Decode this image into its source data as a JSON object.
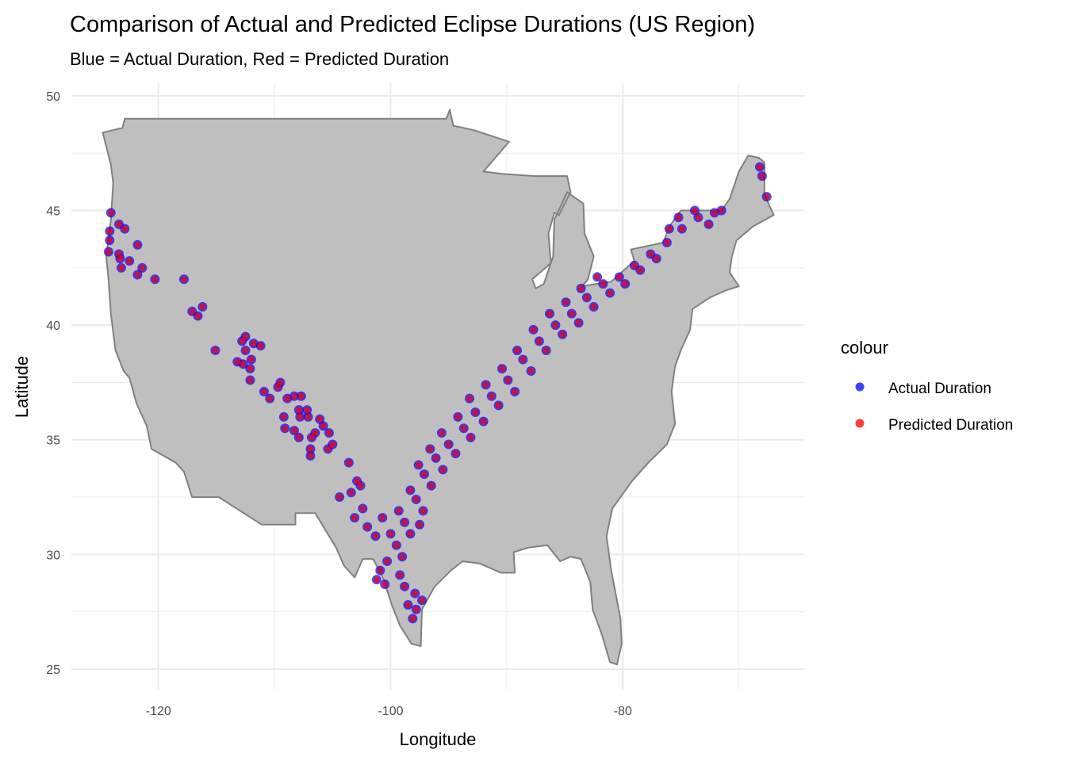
{
  "chart_data": {
    "type": "scatter",
    "title": "Comparison of Actual and Predicted Eclipse Durations (US Region)",
    "subtitle": "Blue = Actual Duration, Red = Predicted Duration",
    "xlabel": "Longitude",
    "ylabel": "Latitude",
    "xlim": [
      -127.5,
      -64.3
    ],
    "ylim": [
      24.1,
      50.55
    ],
    "x_ticks": [
      {
        "value": -120,
        "label": "-120"
      },
      {
        "value": -100,
        "label": "-100"
      },
      {
        "value": -80,
        "label": "-80"
      }
    ],
    "y_ticks": [
      {
        "value": 25,
        "label": "25"
      },
      {
        "value": 30,
        "label": "30"
      },
      {
        "value": 35,
        "label": "35"
      },
      {
        "value": 40,
        "label": "40"
      },
      {
        "value": 45,
        "label": "45"
      },
      {
        "value": 50,
        "label": "50"
      }
    ],
    "grid": true,
    "legend": {
      "title": "colour",
      "placement": "right",
      "entries": [
        {
          "label": "Actual Duration",
          "color": "#0000ff"
        },
        {
          "label": "Predicted Duration",
          "color": "#ff0000"
        }
      ]
    },
    "map_fill": "#bfbfbf",
    "map_stroke": "#808080",
    "us_outline": [
      [
        -124.8,
        48.4
      ],
      [
        -123.1,
        48.6
      ],
      [
        -122.9,
        49.0
      ],
      [
        -95.2,
        49.0
      ],
      [
        -94.9,
        49.4
      ],
      [
        -94.6,
        48.7
      ],
      [
        -92.8,
        48.5
      ],
      [
        -89.8,
        48.0
      ],
      [
        -92.0,
        46.7
      ],
      [
        -90.4,
        46.6
      ],
      [
        -87.6,
        46.5
      ],
      [
        -84.8,
        46.5
      ],
      [
        -84.5,
        45.8
      ],
      [
        -85.5,
        44.8
      ],
      [
        -85.9,
        44.9
      ],
      [
        -86.4,
        44.0
      ],
      [
        -86.2,
        42.7
      ],
      [
        -87.8,
        42.0
      ],
      [
        -87.5,
        41.6
      ],
      [
        -86.8,
        41.8
      ],
      [
        -86.0,
        43.0
      ],
      [
        -85.9,
        44.6
      ],
      [
        -84.8,
        45.8
      ],
      [
        -83.4,
        45.3
      ],
      [
        -83.3,
        44.0
      ],
      [
        -82.5,
        43.0
      ],
      [
        -83.0,
        42.0
      ],
      [
        -83.5,
        41.7
      ],
      [
        -81.0,
        41.9
      ],
      [
        -79.0,
        42.8
      ],
      [
        -79.3,
        43.3
      ],
      [
        -76.5,
        43.6
      ],
      [
        -76.0,
        44.3
      ],
      [
        -75.0,
        45.0
      ],
      [
        -71.5,
        45.0
      ],
      [
        -70.8,
        45.5
      ],
      [
        -70.0,
        46.7
      ],
      [
        -69.2,
        47.4
      ],
      [
        -68.3,
        47.3
      ],
      [
        -67.8,
        47.1
      ],
      [
        -67.8,
        45.7
      ],
      [
        -67.0,
        44.8
      ],
      [
        -68.8,
        44.3
      ],
      [
        -70.2,
        43.7
      ],
      [
        -70.6,
        43.0
      ],
      [
        -70.8,
        42.3
      ],
      [
        -70.0,
        41.7
      ],
      [
        -71.2,
        41.5
      ],
      [
        -72.5,
        41.2
      ],
      [
        -74.0,
        40.7
      ],
      [
        -74.2,
        39.8
      ],
      [
        -75.0,
        38.9
      ],
      [
        -75.5,
        38.2
      ],
      [
        -75.8,
        37.1
      ],
      [
        -75.5,
        35.7
      ],
      [
        -76.2,
        34.8
      ],
      [
        -77.8,
        34.0
      ],
      [
        -79.2,
        33.2
      ],
      [
        -80.9,
        32.0
      ],
      [
        -81.4,
        30.8
      ],
      [
        -81.0,
        29.3
      ],
      [
        -80.2,
        27.2
      ],
      [
        -80.1,
        26.1
      ],
      [
        -80.5,
        25.2
      ],
      [
        -81.1,
        25.3
      ],
      [
        -81.8,
        26.5
      ],
      [
        -82.6,
        27.6
      ],
      [
        -82.8,
        28.8
      ],
      [
        -83.6,
        29.8
      ],
      [
        -84.5,
        29.9
      ],
      [
        -85.4,
        29.7
      ],
      [
        -86.5,
        30.4
      ],
      [
        -88.1,
        30.3
      ],
      [
        -89.4,
        30.1
      ],
      [
        -89.3,
        29.2
      ],
      [
        -90.5,
        29.2
      ],
      [
        -92.3,
        29.6
      ],
      [
        -93.8,
        29.7
      ],
      [
        -94.8,
        29.3
      ],
      [
        -96.2,
        28.6
      ],
      [
        -97.3,
        27.6
      ],
      [
        -97.4,
        26.0
      ],
      [
        -98.2,
        26.1
      ],
      [
        -99.2,
        26.9
      ],
      [
        -99.9,
        27.8
      ],
      [
        -100.6,
        28.9
      ],
      [
        -101.5,
        29.8
      ],
      [
        -102.4,
        29.8
      ],
      [
        -103.1,
        29.0
      ],
      [
        -104.0,
        29.5
      ],
      [
        -104.7,
        30.3
      ],
      [
        -106.5,
        31.8
      ],
      [
        -108.2,
        31.8
      ],
      [
        -108.2,
        31.3
      ],
      [
        -111.1,
        31.3
      ],
      [
        -114.8,
        32.5
      ],
      [
        -117.1,
        32.5
      ],
      [
        -117.8,
        33.6
      ],
      [
        -118.5,
        34.0
      ],
      [
        -120.6,
        34.6
      ],
      [
        -121.0,
        35.6
      ],
      [
        -121.9,
        36.6
      ],
      [
        -122.5,
        37.7
      ],
      [
        -123.0,
        38.0
      ],
      [
        -123.7,
        38.9
      ],
      [
        -124.1,
        40.5
      ],
      [
        -124.3,
        42.0
      ],
      [
        -124.5,
        43.0
      ],
      [
        -124.1,
        44.6
      ],
      [
        -123.9,
        46.2
      ],
      [
        -124.1,
        47.0
      ],
      [
        -124.7,
        48.2
      ]
    ],
    "points": [
      [
        -124.1,
        44.9
      ],
      [
        -123.4,
        44.4
      ],
      [
        -122.9,
        44.2
      ],
      [
        -124.2,
        44.1
      ],
      [
        -124.2,
        43.7
      ],
      [
        -124.3,
        43.2
      ],
      [
        -123.4,
        43.1
      ],
      [
        -123.3,
        42.9
      ],
      [
        -121.8,
        43.5
      ],
      [
        -122.5,
        42.8
      ],
      [
        -123.2,
        42.5
      ],
      [
        -121.4,
        42.5
      ],
      [
        -121.8,
        42.2
      ],
      [
        -120.3,
        42.0
      ],
      [
        -117.8,
        42.0
      ],
      [
        -117.1,
        40.6
      ],
      [
        -116.2,
        40.8
      ],
      [
        -116.6,
        40.4
      ],
      [
        -115.1,
        38.9
      ],
      [
        -112.5,
        39.5
      ],
      [
        -112.8,
        39.3
      ],
      [
        -111.8,
        39.2
      ],
      [
        -111.2,
        39.1
      ],
      [
        -112.5,
        38.9
      ],
      [
        -112.0,
        38.5
      ],
      [
        -113.2,
        38.4
      ],
      [
        -112.7,
        38.3
      ],
      [
        -112.1,
        38.1
      ],
      [
        -112.1,
        37.6
      ],
      [
        -110.9,
        37.1
      ],
      [
        -109.5,
        37.5
      ],
      [
        -109.7,
        37.3
      ],
      [
        -110.4,
        36.8
      ],
      [
        -108.9,
        36.8
      ],
      [
        -108.3,
        36.9
      ],
      [
        -107.7,
        36.9
      ],
      [
        -107.9,
        36.3
      ],
      [
        -107.2,
        36.3
      ],
      [
        -107.8,
        36.0
      ],
      [
        -107.1,
        36.0
      ],
      [
        -109.2,
        36.0
      ],
      [
        -109.1,
        35.5
      ],
      [
        -108.3,
        35.4
      ],
      [
        -107.9,
        35.1
      ],
      [
        -106.1,
        35.9
      ],
      [
        -105.8,
        35.6
      ],
      [
        -106.5,
        35.3
      ],
      [
        -106.8,
        35.1
      ],
      [
        -105.3,
        35.3
      ],
      [
        -105.0,
        34.8
      ],
      [
        -105.4,
        34.6
      ],
      [
        -106.9,
        34.6
      ],
      [
        -106.9,
        34.3
      ],
      [
        -103.6,
        34.0
      ],
      [
        -102.9,
        33.2
      ],
      [
        -102.6,
        33.0
      ],
      [
        -103.4,
        32.7
      ],
      [
        -104.4,
        32.5
      ],
      [
        -102.4,
        32.0
      ],
      [
        -100.7,
        31.6
      ],
      [
        -103.1,
        31.6
      ],
      [
        -102.0,
        31.2
      ],
      [
        -101.3,
        30.8
      ],
      [
        -100.9,
        29.3
      ],
      [
        -100.3,
        29.7
      ],
      [
        -101.2,
        28.9
      ],
      [
        -100.5,
        28.7
      ],
      [
        -99.5,
        30.4
      ],
      [
        -100.0,
        30.9
      ],
      [
        -99.0,
        29.9
      ],
      [
        -99.2,
        29.1
      ],
      [
        -98.8,
        31.4
      ],
      [
        -99.3,
        31.9
      ],
      [
        -98.3,
        30.9
      ],
      [
        -97.8,
        32.4
      ],
      [
        -98.3,
        32.8
      ],
      [
        -97.2,
        31.9
      ],
      [
        -97.5,
        31.3
      ],
      [
        -97.1,
        33.5
      ],
      [
        -97.6,
        33.9
      ],
      [
        -96.5,
        33.0
      ],
      [
        -96.1,
        34.2
      ],
      [
        -96.6,
        34.6
      ],
      [
        -95.5,
        33.7
      ],
      [
        -95.0,
        34.8
      ],
      [
        -95.6,
        35.3
      ],
      [
        -94.4,
        34.4
      ],
      [
        -93.7,
        35.5
      ],
      [
        -94.2,
        36.0
      ],
      [
        -93.1,
        35.1
      ],
      [
        -92.7,
        36.2
      ],
      [
        -93.2,
        36.8
      ],
      [
        -92.0,
        35.8
      ],
      [
        -91.3,
        36.9
      ],
      [
        -91.8,
        37.4
      ],
      [
        -90.7,
        36.5
      ],
      [
        -89.9,
        37.6
      ],
      [
        -90.4,
        38.1
      ],
      [
        -89.3,
        37.1
      ],
      [
        -88.6,
        38.5
      ],
      [
        -89.1,
        38.9
      ],
      [
        -87.9,
        38.0
      ],
      [
        -87.2,
        39.3
      ],
      [
        -87.7,
        39.8
      ],
      [
        -86.6,
        38.9
      ],
      [
        -85.8,
        40.0
      ],
      [
        -86.3,
        40.5
      ],
      [
        -85.2,
        39.6
      ],
      [
        -84.4,
        40.5
      ],
      [
        -84.9,
        41.0
      ],
      [
        -83.8,
        40.1
      ],
      [
        -83.1,
        41.2
      ],
      [
        -83.6,
        41.6
      ],
      [
        -82.5,
        40.8
      ],
      [
        -81.7,
        41.8
      ],
      [
        -82.2,
        42.1
      ],
      [
        -81.1,
        41.4
      ],
      [
        -80.3,
        42.1
      ],
      [
        -79.8,
        41.8
      ],
      [
        -79.0,
        42.6
      ],
      [
        -78.5,
        42.4
      ],
      [
        -77.6,
        43.1
      ],
      [
        -77.1,
        42.9
      ],
      [
        -76.2,
        43.6
      ],
      [
        -76.0,
        44.2
      ],
      [
        -74.9,
        44.2
      ],
      [
        -75.2,
        44.7
      ],
      [
        -73.5,
        44.7
      ],
      [
        -73.8,
        45.0
      ],
      [
        -72.1,
        44.9
      ],
      [
        -72.6,
        44.4
      ],
      [
        -71.5,
        45.0
      ],
      [
        -68.2,
        46.9
      ],
      [
        -68.0,
        46.5
      ],
      [
        -67.6,
        45.6
      ],
      [
        -98.8,
        28.6
      ],
      [
        -97.8,
        27.6
      ],
      [
        -98.1,
        27.2
      ],
      [
        -97.3,
        28.0
      ],
      [
        -97.9,
        28.3
      ],
      [
        -98.5,
        27.8
      ]
    ]
  }
}
